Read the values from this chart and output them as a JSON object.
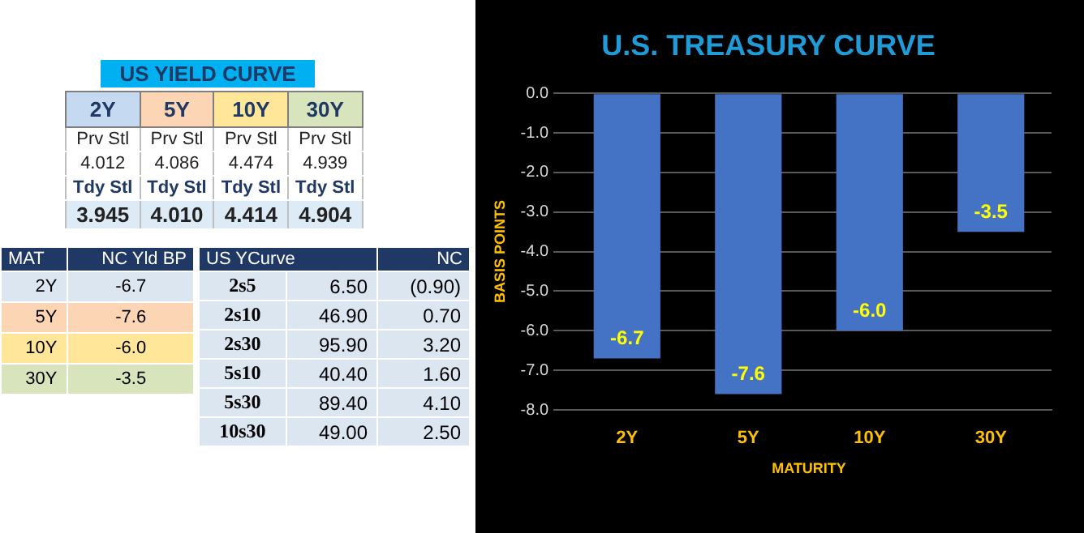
{
  "chart_data": [
    {
      "type": "other",
      "title": "US YIELD CURVE",
      "categories": [
        "2Y",
        "5Y",
        "10Y",
        "30Y"
      ],
      "colors": [
        "#c5d9f1",
        "#fcd5b4",
        "#ffe699",
        "#d8e4bc"
      ],
      "cell_labels": [
        [
          "Prv Stl",
          "Prv Stl",
          "Prv Stl",
          "Prv Stl"
        ],
        [
          "4.012",
          "4.086",
          "4.474",
          "4.939"
        ],
        [
          "Tdy Stl",
          "Tdy Stl",
          "Tdy Stl",
          "Tdy Stl"
        ],
        [
          "3.945",
          "4.010",
          "4.414",
          "4.904"
        ]
      ]
    },
    {
      "type": "other",
      "categories": [
        "MAT",
        "NC Yld  BP"
      ],
      "cell_labels": [
        [
          "2Y",
          "-6.7"
        ],
        [
          "5Y",
          "-7.6"
        ],
        [
          "10Y",
          "-6.0"
        ],
        [
          "30Y",
          "-3.5"
        ]
      ]
    },
    {
      "type": "other",
      "categories": [
        "US YCurve",
        "NC"
      ],
      "cell_labels": [
        [
          "2s5",
          "6.50",
          "(0.90)"
        ],
        [
          "2s10",
          "46.90",
          "0.70"
        ],
        [
          "2s30",
          "95.90",
          "3.20"
        ],
        [
          "5s10",
          "40.40",
          "1.60"
        ],
        [
          "5s30",
          "89.40",
          "4.10"
        ],
        [
          "10s30",
          "49.00",
          "2.50"
        ]
      ]
    },
    {
      "type": "bar",
      "title": "U.S. TREASURY CURVE",
      "xlabel": "MATURITY",
      "ylabel": "BASIS POINTS",
      "categories": [
        "2Y",
        "5Y",
        "10Y",
        "30Y"
      ],
      "values": [
        -6.7,
        -7.6,
        -6.0,
        -3.5
      ],
      "value_labels": [
        "-6.7",
        "-7.6",
        "-6.0",
        "-3.5"
      ],
      "color": "#4472c4",
      "ylim": [
        -8,
        0
      ],
      "yticks": [
        {
          "value": 0,
          "label": "0.0"
        },
        {
          "value": -1,
          "label": "-1.0"
        },
        {
          "value": -2,
          "label": "-2.0"
        },
        {
          "value": -3,
          "label": "-3.0"
        },
        {
          "value": -4,
          "label": "-4.0"
        },
        {
          "value": -5,
          "label": "-5.0"
        },
        {
          "value": -6,
          "label": "-6.0"
        },
        {
          "value": -7,
          "label": "-7.0"
        },
        {
          "value": -8,
          "label": "-8.0"
        }
      ],
      "grid": "y",
      "legend": false
    }
  ]
}
